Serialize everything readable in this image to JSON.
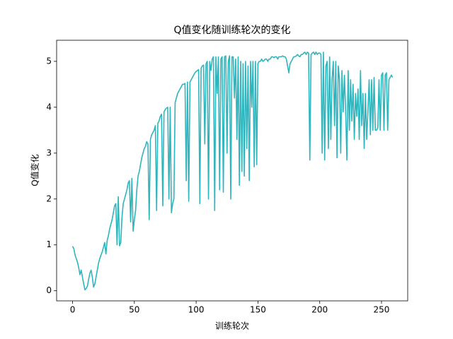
{
  "chart_data": {
    "type": "line",
    "title": "Q值变化随训练轮次的变化",
    "x_label": "训练轮次",
    "y_label": "Q值变化",
    "xlim": [
      -12.9,
      271.2
    ],
    "ylim": [
      -0.22,
      5.46
    ],
    "xticks": [
      0,
      50,
      100,
      150,
      200,
      250
    ],
    "yticks": [
      0,
      1,
      2,
      3,
      4,
      5
    ],
    "x": [
      0,
      1,
      2,
      3,
      4,
      5,
      6,
      7,
      8,
      9,
      10,
      11,
      12,
      13,
      14,
      15,
      16,
      17,
      18,
      19,
      20,
      21,
      22,
      23,
      24,
      25,
      26,
      27,
      28,
      29,
      30,
      31,
      32,
      33,
      34,
      35,
      36,
      37,
      38,
      39,
      40,
      41,
      42,
      43,
      44,
      45,
      46,
      47,
      48,
      49,
      50,
      51,
      52,
      53,
      54,
      55,
      56,
      57,
      58,
      59,
      60,
      61,
      62,
      63,
      64,
      65,
      66,
      67,
      68,
      69,
      70,
      71,
      72,
      73,
      74,
      75,
      76,
      77,
      78,
      79,
      80,
      81,
      82,
      83,
      84,
      85,
      86,
      87,
      88,
      89,
      90,
      91,
      92,
      93,
      94,
      95,
      96,
      97,
      98,
      99,
      100,
      101,
      102,
      103,
      104,
      105,
      106,
      107,
      108,
      109,
      110,
      111,
      112,
      113,
      114,
      115,
      116,
      117,
      118,
      119,
      120,
      121,
      122,
      123,
      124,
      125,
      126,
      127,
      128,
      129,
      130,
      131,
      132,
      133,
      134,
      135,
      136,
      137,
      138,
      139,
      140,
      141,
      142,
      143,
      144,
      145,
      146,
      147,
      148,
      149,
      150,
      151,
      152,
      153,
      154,
      155,
      156,
      157,
      158,
      159,
      160,
      161,
      162,
      163,
      164,
      165,
      166,
      167,
      168,
      169,
      170,
      171,
      172,
      173,
      174,
      175,
      176,
      177,
      178,
      179,
      180,
      181,
      182,
      183,
      184,
      185,
      186,
      187,
      188,
      189,
      190,
      191,
      192,
      193,
      194,
      195,
      196,
      197,
      198,
      199,
      200,
      201,
      202,
      203,
      204,
      205,
      206,
      207,
      208,
      209,
      210,
      211,
      212,
      213,
      214,
      215,
      216,
      217,
      218,
      219,
      220,
      221,
      222,
      223,
      224,
      225,
      226,
      227,
      228,
      229,
      230,
      231,
      232,
      233,
      234,
      235,
      236,
      237,
      238,
      239,
      240,
      241,
      242,
      243,
      244,
      245,
      246,
      247,
      248,
      249,
      250,
      251,
      252,
      253,
      254,
      255,
      256,
      257,
      258,
      259
    ],
    "series": [
      {
        "color": "#2fb5bd",
        "values": [
          0.97,
          0.92,
          0.78,
          0.7,
          0.62,
          0.5,
          0.35,
          0.45,
          0.3,
          0.15,
          0.02,
          0.05,
          0.1,
          0.25,
          0.38,
          0.45,
          0.3,
          0.08,
          0.15,
          0.3,
          0.45,
          0.6,
          0.7,
          0.78,
          0.85,
          0.95,
          1.05,
          0.8,
          1.1,
          1.2,
          1.35,
          1.45,
          1.55,
          1.7,
          1.85,
          1.9,
          1.0,
          2.05,
          0.98,
          1.05,
          1.6,
          1.9,
          2.0,
          2.1,
          2.2,
          2.35,
          2.4,
          1.5,
          2.45,
          1.3,
          1.55,
          1.75,
          2.2,
          2.5,
          2.6,
          2.75,
          2.9,
          3.0,
          3.1,
          3.15,
          3.25,
          3.2,
          1.55,
          3.3,
          3.4,
          3.45,
          3.5,
          3.6,
          1.75,
          3.65,
          3.7,
          3.8,
          3.85,
          1.85,
          3.9,
          3.95,
          3.98,
          4.0,
          2.0,
          4.0,
          1.7,
          1.9,
          2.0,
          4.1,
          4.2,
          4.3,
          4.35,
          4.4,
          4.45,
          4.5,
          4.5,
          4.52,
          2.4,
          4.55,
          1.95,
          4.55,
          4.6,
          4.65,
          4.7,
          4.75,
          4.78,
          4.8,
          4.82,
          1.9,
          4.85,
          4.9,
          4.92,
          3.2,
          4.95,
          5.0,
          2.0,
          5.0,
          4.8,
          5.05,
          5.1,
          1.75,
          5.1,
          4.3,
          5.1,
          2.2,
          5.05,
          5.1,
          2.15,
          5.1,
          5.12,
          3.0,
          5.0,
          5.12,
          2.0,
          5.1,
          5.1,
          4.2,
          5.05,
          3.3,
          5.1,
          2.3,
          5.0,
          2.6,
          4.95,
          2.5,
          5.0,
          3.1,
          4.9,
          2.4,
          5.0,
          4.0,
          5.0,
          2.7,
          5.0,
          2.75,
          4.95,
          5.0,
          5.0,
          5.05,
          5.0,
          5.02,
          5.05,
          5.05,
          5.0,
          5.05,
          5.05,
          5.1,
          5.1,
          5.08,
          5.1,
          5.1,
          5.05,
          5.1,
          5.1,
          5.1,
          5.12,
          5.1,
          5.1,
          5.05,
          4.9,
          4.75,
          4.95,
          5.0,
          5.05,
          5.1,
          5.1,
          5.12,
          5.15,
          5.12,
          5.1,
          5.15,
          5.15,
          5.18,
          5.2,
          5.15,
          5.2,
          5.18,
          2.85,
          5.15,
          5.18,
          5.2,
          5.15,
          5.2,
          5.15,
          5.18,
          5.18,
          5.15,
          3.0,
          5.2,
          2.85,
          4.9,
          5.0,
          3.1,
          5.1,
          3.3,
          4.6,
          5.0,
          3.6,
          5.0,
          2.9,
          4.9,
          4.6,
          3.0,
          4.8,
          3.9,
          4.7,
          3.9,
          2.85,
          4.8,
          3.5,
          4.6,
          3.7,
          4.5,
          3.3,
          4.3,
          3.8,
          4.4,
          3.3,
          4.8,
          3.6,
          4.3,
          3.1,
          4.3,
          3.3,
          3.9,
          4.6,
          3.4,
          4.6,
          3.5,
          4.65,
          3.5,
          3.5,
          3.55,
          4.6,
          3.5,
          4.7,
          4.75,
          3.5,
          4.7,
          4.75,
          3.5,
          4.6,
          4.65,
          4.7,
          4.65
        ]
      }
    ]
  }
}
